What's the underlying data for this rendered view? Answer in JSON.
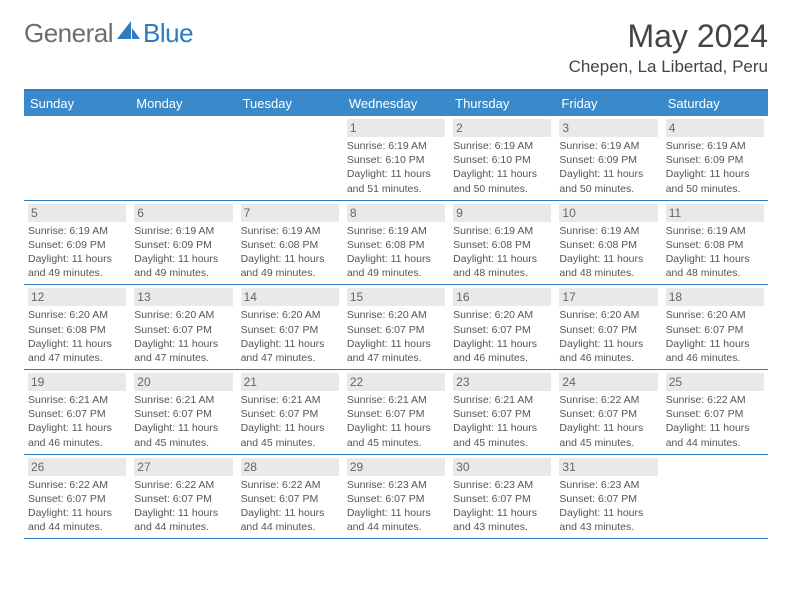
{
  "colors": {
    "accent": "#2d7cc0",
    "header_bg": "#3a8acb",
    "daynum_bg": "#e9e9ea",
    "text_dark": "#444444",
    "text_muted": "#666666",
    "text_body": "#555555",
    "logo_gray": "#6d6e71"
  },
  "logo": {
    "part1": "General",
    "part2": "Blue"
  },
  "title": "May 2024",
  "location": "Chepen, La Libertad, Peru",
  "weekdays": [
    "Sunday",
    "Monday",
    "Tuesday",
    "Wednesday",
    "Thursday",
    "Friday",
    "Saturday"
  ],
  "weeks": [
    [
      {
        "n": "",
        "sr": "",
        "ss": "",
        "d1": "",
        "d2": "",
        "empty": true
      },
      {
        "n": "",
        "sr": "",
        "ss": "",
        "d1": "",
        "d2": "",
        "empty": true
      },
      {
        "n": "",
        "sr": "",
        "ss": "",
        "d1": "",
        "d2": "",
        "empty": true
      },
      {
        "n": "1",
        "sr": "Sunrise: 6:19 AM",
        "ss": "Sunset: 6:10 PM",
        "d1": "Daylight: 11 hours",
        "d2": "and 51 minutes."
      },
      {
        "n": "2",
        "sr": "Sunrise: 6:19 AM",
        "ss": "Sunset: 6:10 PM",
        "d1": "Daylight: 11 hours",
        "d2": "and 50 minutes."
      },
      {
        "n": "3",
        "sr": "Sunrise: 6:19 AM",
        "ss": "Sunset: 6:09 PM",
        "d1": "Daylight: 11 hours",
        "d2": "and 50 minutes."
      },
      {
        "n": "4",
        "sr": "Sunrise: 6:19 AM",
        "ss": "Sunset: 6:09 PM",
        "d1": "Daylight: 11 hours",
        "d2": "and 50 minutes."
      }
    ],
    [
      {
        "n": "5",
        "sr": "Sunrise: 6:19 AM",
        "ss": "Sunset: 6:09 PM",
        "d1": "Daylight: 11 hours",
        "d2": "and 49 minutes."
      },
      {
        "n": "6",
        "sr": "Sunrise: 6:19 AM",
        "ss": "Sunset: 6:09 PM",
        "d1": "Daylight: 11 hours",
        "d2": "and 49 minutes."
      },
      {
        "n": "7",
        "sr": "Sunrise: 6:19 AM",
        "ss": "Sunset: 6:08 PM",
        "d1": "Daylight: 11 hours",
        "d2": "and 49 minutes."
      },
      {
        "n": "8",
        "sr": "Sunrise: 6:19 AM",
        "ss": "Sunset: 6:08 PM",
        "d1": "Daylight: 11 hours",
        "d2": "and 49 minutes."
      },
      {
        "n": "9",
        "sr": "Sunrise: 6:19 AM",
        "ss": "Sunset: 6:08 PM",
        "d1": "Daylight: 11 hours",
        "d2": "and 48 minutes."
      },
      {
        "n": "10",
        "sr": "Sunrise: 6:19 AM",
        "ss": "Sunset: 6:08 PM",
        "d1": "Daylight: 11 hours",
        "d2": "and 48 minutes."
      },
      {
        "n": "11",
        "sr": "Sunrise: 6:19 AM",
        "ss": "Sunset: 6:08 PM",
        "d1": "Daylight: 11 hours",
        "d2": "and 48 minutes."
      }
    ],
    [
      {
        "n": "12",
        "sr": "Sunrise: 6:20 AM",
        "ss": "Sunset: 6:08 PM",
        "d1": "Daylight: 11 hours",
        "d2": "and 47 minutes."
      },
      {
        "n": "13",
        "sr": "Sunrise: 6:20 AM",
        "ss": "Sunset: 6:07 PM",
        "d1": "Daylight: 11 hours",
        "d2": "and 47 minutes."
      },
      {
        "n": "14",
        "sr": "Sunrise: 6:20 AM",
        "ss": "Sunset: 6:07 PM",
        "d1": "Daylight: 11 hours",
        "d2": "and 47 minutes."
      },
      {
        "n": "15",
        "sr": "Sunrise: 6:20 AM",
        "ss": "Sunset: 6:07 PM",
        "d1": "Daylight: 11 hours",
        "d2": "and 47 minutes."
      },
      {
        "n": "16",
        "sr": "Sunrise: 6:20 AM",
        "ss": "Sunset: 6:07 PM",
        "d1": "Daylight: 11 hours",
        "d2": "and 46 minutes."
      },
      {
        "n": "17",
        "sr": "Sunrise: 6:20 AM",
        "ss": "Sunset: 6:07 PM",
        "d1": "Daylight: 11 hours",
        "d2": "and 46 minutes."
      },
      {
        "n": "18",
        "sr": "Sunrise: 6:20 AM",
        "ss": "Sunset: 6:07 PM",
        "d1": "Daylight: 11 hours",
        "d2": "and 46 minutes."
      }
    ],
    [
      {
        "n": "19",
        "sr": "Sunrise: 6:21 AM",
        "ss": "Sunset: 6:07 PM",
        "d1": "Daylight: 11 hours",
        "d2": "and 46 minutes."
      },
      {
        "n": "20",
        "sr": "Sunrise: 6:21 AM",
        "ss": "Sunset: 6:07 PM",
        "d1": "Daylight: 11 hours",
        "d2": "and 45 minutes."
      },
      {
        "n": "21",
        "sr": "Sunrise: 6:21 AM",
        "ss": "Sunset: 6:07 PM",
        "d1": "Daylight: 11 hours",
        "d2": "and 45 minutes."
      },
      {
        "n": "22",
        "sr": "Sunrise: 6:21 AM",
        "ss": "Sunset: 6:07 PM",
        "d1": "Daylight: 11 hours",
        "d2": "and 45 minutes."
      },
      {
        "n": "23",
        "sr": "Sunrise: 6:21 AM",
        "ss": "Sunset: 6:07 PM",
        "d1": "Daylight: 11 hours",
        "d2": "and 45 minutes."
      },
      {
        "n": "24",
        "sr": "Sunrise: 6:22 AM",
        "ss": "Sunset: 6:07 PM",
        "d1": "Daylight: 11 hours",
        "d2": "and 45 minutes."
      },
      {
        "n": "25",
        "sr": "Sunrise: 6:22 AM",
        "ss": "Sunset: 6:07 PM",
        "d1": "Daylight: 11 hours",
        "d2": "and 44 minutes."
      }
    ],
    [
      {
        "n": "26",
        "sr": "Sunrise: 6:22 AM",
        "ss": "Sunset: 6:07 PM",
        "d1": "Daylight: 11 hours",
        "d2": "and 44 minutes."
      },
      {
        "n": "27",
        "sr": "Sunrise: 6:22 AM",
        "ss": "Sunset: 6:07 PM",
        "d1": "Daylight: 11 hours",
        "d2": "and 44 minutes."
      },
      {
        "n": "28",
        "sr": "Sunrise: 6:22 AM",
        "ss": "Sunset: 6:07 PM",
        "d1": "Daylight: 11 hours",
        "d2": "and 44 minutes."
      },
      {
        "n": "29",
        "sr": "Sunrise: 6:23 AM",
        "ss": "Sunset: 6:07 PM",
        "d1": "Daylight: 11 hours",
        "d2": "and 44 minutes."
      },
      {
        "n": "30",
        "sr": "Sunrise: 6:23 AM",
        "ss": "Sunset: 6:07 PM",
        "d1": "Daylight: 11 hours",
        "d2": "and 43 minutes."
      },
      {
        "n": "31",
        "sr": "Sunrise: 6:23 AM",
        "ss": "Sunset: 6:07 PM",
        "d1": "Daylight: 11 hours",
        "d2": "and 43 minutes."
      },
      {
        "n": "",
        "sr": "",
        "ss": "",
        "d1": "",
        "d2": "",
        "empty": true
      }
    ]
  ]
}
